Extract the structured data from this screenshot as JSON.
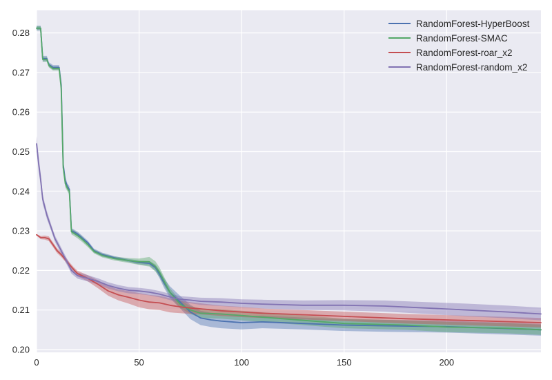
{
  "chart_data": {
    "type": "line",
    "title": "",
    "xlabel": "",
    "ylabel": "",
    "xlim": [
      0,
      246
    ],
    "ylim": [
      0.1993,
      0.2857
    ],
    "x_ticks": [
      0,
      50,
      100,
      150,
      200
    ],
    "y_ticks": [
      0.2,
      0.21,
      0.22,
      0.23,
      0.24,
      0.25,
      0.26,
      0.27,
      0.28
    ],
    "grid": true,
    "legend_position": "top-right",
    "series": [
      {
        "name": "RandomForest-HyperBoost",
        "color": "#4c72b0",
        "x": [
          0,
          2,
          3,
          5,
          6,
          8,
          9,
          11,
          12,
          13,
          14,
          15,
          16,
          17,
          18,
          20,
          22,
          25,
          28,
          32,
          38,
          45,
          50,
          55,
          58,
          60,
          62,
          65,
          70,
          75,
          80,
          85,
          90,
          100,
          110,
          130,
          150,
          170,
          200,
          230,
          246
        ],
        "y": [
          0.2812,
          0.2812,
          0.2735,
          0.2735,
          0.272,
          0.2713,
          0.2713,
          0.2713,
          0.2668,
          0.2468,
          0.2427,
          0.2412,
          0.2405,
          0.23,
          0.2298,
          0.2292,
          0.2283,
          0.227,
          0.225,
          0.224,
          0.2232,
          0.2225,
          0.222,
          0.2218,
          0.2207,
          0.219,
          0.217,
          0.2145,
          0.212,
          0.2095,
          0.208,
          0.2075,
          0.2072,
          0.2068,
          0.207,
          0.2066,
          0.2062,
          0.206,
          0.2058,
          0.2053,
          0.205
        ],
        "band": [
          0.0006,
          0.0006,
          0.0007,
          0.0007,
          0.0006,
          0.0006,
          0.0006,
          0.0006,
          0.0008,
          0.001,
          0.001,
          0.0008,
          0.0008,
          0.0006,
          0.0006,
          0.0006,
          0.0006,
          0.0005,
          0.0005,
          0.0005,
          0.0004,
          0.0004,
          0.0005,
          0.0006,
          0.0008,
          0.001,
          0.0012,
          0.0015,
          0.0016,
          0.0018,
          0.0018,
          0.0018,
          0.0018,
          0.0017,
          0.0016,
          0.0015,
          0.0015,
          0.0015,
          0.0015,
          0.0015,
          0.0015
        ]
      },
      {
        "name": "RandomForest-SMAC",
        "color": "#55a868",
        "x": [
          0,
          2,
          3,
          5,
          6,
          8,
          9,
          11,
          12,
          13,
          14,
          15,
          16,
          17,
          18,
          20,
          22,
          25,
          28,
          32,
          38,
          45,
          50,
          55,
          58,
          60,
          62,
          65,
          70,
          75,
          80,
          90,
          100,
          120,
          150,
          180,
          200,
          230,
          246
        ],
        "y": [
          0.2812,
          0.2812,
          0.2733,
          0.2733,
          0.2718,
          0.271,
          0.271,
          0.271,
          0.266,
          0.246,
          0.242,
          0.2408,
          0.24,
          0.2298,
          0.2295,
          0.2288,
          0.228,
          0.2265,
          0.2248,
          0.2238,
          0.223,
          0.2225,
          0.2222,
          0.2222,
          0.221,
          0.2195,
          0.2175,
          0.2145,
          0.2115,
          0.21,
          0.2092,
          0.209,
          0.2086,
          0.2078,
          0.2066,
          0.2062,
          0.2057,
          0.2054,
          0.205
        ],
        "band": [
          0.0005,
          0.0005,
          0.0006,
          0.0006,
          0.0005,
          0.0005,
          0.0005,
          0.0005,
          0.0008,
          0.001,
          0.001,
          0.0008,
          0.0008,
          0.0007,
          0.0007,
          0.0007,
          0.0007,
          0.0006,
          0.0005,
          0.0005,
          0.0005,
          0.0006,
          0.0008,
          0.0012,
          0.0013,
          0.0012,
          0.0011,
          0.001,
          0.001,
          0.001,
          0.0012,
          0.0012,
          0.0012,
          0.0012,
          0.0012,
          0.0012,
          0.0013,
          0.0013,
          0.0013
        ]
      },
      {
        "name": "RandomForest-roar_x2",
        "color": "#c44e52",
        "x": [
          0,
          2,
          4,
          6,
          8,
          10,
          12,
          14,
          16,
          18,
          20,
          25,
          30,
          35,
          40,
          45,
          50,
          55,
          60,
          65,
          70,
          75,
          80,
          90,
          100,
          110,
          120,
          150,
          180,
          200,
          220,
          246
        ],
        "y": [
          0.229,
          0.2283,
          0.2283,
          0.228,
          0.2265,
          0.225,
          0.224,
          0.2228,
          0.2215,
          0.2203,
          0.2192,
          0.218,
          0.2165,
          0.2148,
          0.2138,
          0.2132,
          0.2125,
          0.212,
          0.2118,
          0.2112,
          0.2108,
          0.2105,
          0.2103,
          0.2098,
          0.2095,
          0.2092,
          0.209,
          0.2084,
          0.2078,
          0.2075,
          0.2072,
          0.2068
        ],
        "band": [
          0.0002,
          0.0004,
          0.0005,
          0.0006,
          0.0006,
          0.0006,
          0.0006,
          0.0006,
          0.0006,
          0.0006,
          0.0007,
          0.0008,
          0.001,
          0.0012,
          0.0014,
          0.0016,
          0.0018,
          0.0018,
          0.0018,
          0.0018,
          0.0016,
          0.0015,
          0.0014,
          0.0013,
          0.0013,
          0.0012,
          0.0012,
          0.0012,
          0.0012,
          0.0012,
          0.0012,
          0.0012
        ]
      },
      {
        "name": "RandomForest-random_x2",
        "color": "#8172b2",
        "x": [
          0,
          1,
          2,
          3,
          4,
          5,
          7,
          9,
          11,
          13,
          15,
          17,
          20,
          25,
          30,
          35,
          40,
          45,
          50,
          55,
          60,
          65,
          70,
          75,
          80,
          90,
          100,
          110,
          130,
          150,
          170,
          190,
          210,
          230,
          246
        ],
        "y": [
          0.252,
          0.247,
          0.243,
          0.238,
          0.236,
          0.234,
          0.231,
          0.228,
          0.226,
          0.224,
          0.222,
          0.22,
          0.2187,
          0.218,
          0.2172,
          0.2162,
          0.2155,
          0.215,
          0.2148,
          0.2145,
          0.214,
          0.2133,
          0.2127,
          0.2125,
          0.2122,
          0.212,
          0.2117,
          0.2115,
          0.2112,
          0.2112,
          0.211,
          0.2105,
          0.21,
          0.2095,
          0.209
        ],
        "band": [
          0.002,
          0.0018,
          0.0016,
          0.0012,
          0.001,
          0.001,
          0.0008,
          0.0008,
          0.0008,
          0.0008,
          0.0008,
          0.0008,
          0.0008,
          0.0008,
          0.0008,
          0.0008,
          0.0008,
          0.0008,
          0.0008,
          0.0008,
          0.0008,
          0.0008,
          0.0008,
          0.0008,
          0.0009,
          0.001,
          0.001,
          0.0011,
          0.0012,
          0.0013,
          0.0014,
          0.0015,
          0.0016,
          0.0016,
          0.0016
        ]
      }
    ]
  }
}
